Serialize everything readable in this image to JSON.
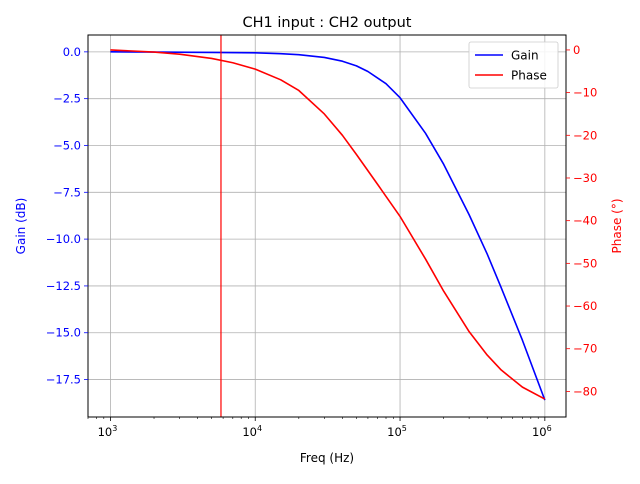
{
  "chart_data": {
    "type": "line",
    "title": "CH1 input  : CH2 output",
    "xlabel": "Freq (Hz)",
    "x_scale": "log",
    "xlim": [
      700,
      1400000
    ],
    "x_ticks": [
      {
        "value": 1000,
        "base": "10",
        "exp": "3"
      },
      {
        "value": 10000,
        "base": "10",
        "exp": "4"
      },
      {
        "value": 100000,
        "base": "10",
        "exp": "5"
      },
      {
        "value": 1000000,
        "base": "10",
        "exp": "6"
      }
    ],
    "y_left": {
      "label": "Gain (dB)",
      "color": "#0000ff",
      "ylim": [
        -19.5,
        0.9
      ],
      "ticks": [
        0.0,
        -2.5,
        -5.0,
        -7.5,
        -10.0,
        -12.5,
        -15.0,
        -17.5
      ],
      "tick_labels": [
        "0.0",
        "−2.5",
        "−5.0",
        "−7.5",
        "−10.0",
        "−12.5",
        "−15.0",
        "−17.5"
      ]
    },
    "y_right": {
      "label": "Phase (°)",
      "color": "#ff0000",
      "ylim": [
        -86,
        3.5
      ],
      "ticks": [
        0,
        -10,
        -20,
        -30,
        -40,
        -50,
        -60,
        -70,
        -80
      ],
      "tick_labels": [
        "0",
        "−10",
        "−20",
        "−30",
        "−40",
        "−50",
        "−60",
        "−70",
        "−80"
      ]
    },
    "grid": true,
    "legend_position": "top-right",
    "series": [
      {
        "name": "Gain",
        "axis": "left",
        "color": "#0000ff",
        "x": [
          1000,
          2000,
          5000,
          10000,
          15000,
          20000,
          30000,
          40000,
          50000,
          60000,
          80000,
          100000,
          150000,
          200000,
          300000,
          400000,
          500000,
          700000,
          1000000
        ],
        "y": [
          0.0,
          -0.01,
          -0.03,
          -0.05,
          -0.1,
          -0.15,
          -0.3,
          -0.5,
          -0.75,
          -1.05,
          -1.7,
          -2.45,
          -4.35,
          -6.0,
          -8.7,
          -10.8,
          -12.6,
          -15.4,
          -18.6
        ]
      },
      {
        "name": "Phase",
        "axis": "right",
        "color": "#ff0000",
        "x": [
          1000,
          2000,
          3000,
          5000,
          7000,
          10000,
          15000,
          20000,
          30000,
          40000,
          50000,
          70000,
          100000,
          150000,
          200000,
          300000,
          400000,
          500000,
          700000,
          1000000
        ],
        "y": [
          0.0,
          -0.5,
          -1.0,
          -2.0,
          -3.0,
          -4.5,
          -7.0,
          -9.5,
          -15.0,
          -20.0,
          -24.5,
          -31.5,
          -39.0,
          -49.0,
          -56.5,
          -66.0,
          -71.5,
          -75.0,
          -79.0,
          -81.8
        ]
      }
    ],
    "marker_line": {
      "x": 5800,
      "color": "#ff0000"
    }
  }
}
